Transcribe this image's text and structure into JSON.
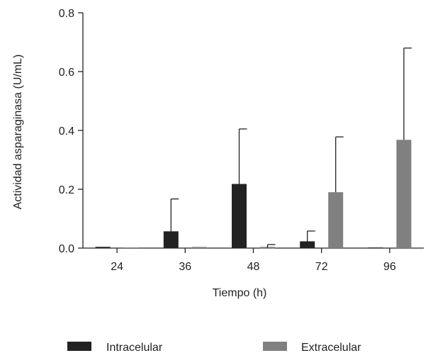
{
  "chart_data": {
    "type": "bar",
    "title": "",
    "xlabel": "Tiempo (h)",
    "ylabel": "Actividad asparaginasa  (U/mL)",
    "categories": [
      "24",
      "36",
      "48",
      "72",
      "96"
    ],
    "ylim": [
      0,
      0.8
    ],
    "yticks": [
      "0.0",
      "0.2",
      "0.4",
      "0.6",
      "0.8"
    ],
    "grid": false,
    "legend_position": "bottom",
    "series": [
      {
        "name": "Intracelular",
        "color": "#222222",
        "values": [
          0.0,
          0.057,
          0.218,
          0.023,
          0.002
        ],
        "error": [
          0.0,
          0.11,
          0.187,
          0.035,
          0.0
        ]
      },
      {
        "name": "Extracelular",
        "color": "#808080",
        "values": [
          0.002,
          0.004,
          0.0,
          0.19,
          0.368
        ],
        "error": [
          0.0,
          0.0,
          0.012,
          0.188,
          0.312
        ]
      }
    ]
  }
}
